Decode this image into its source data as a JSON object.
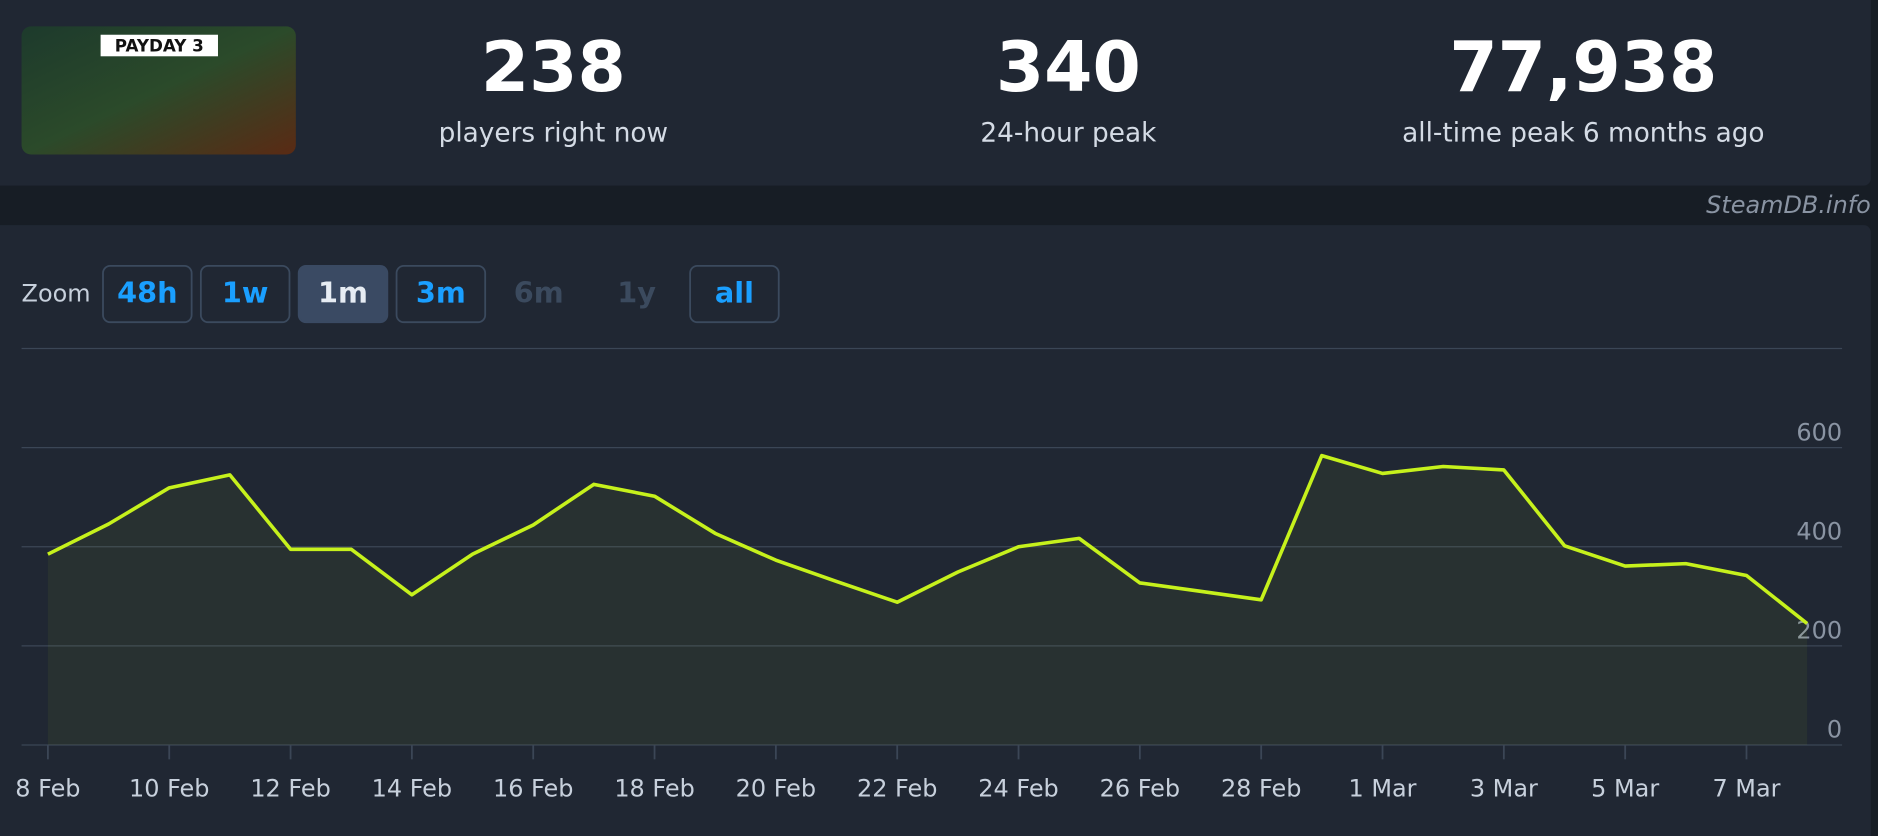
{
  "header": {
    "game_logo": "PAYDAY 3",
    "stats": [
      {
        "value": "238",
        "label": "players right now"
      },
      {
        "value": "340",
        "label": "24-hour peak"
      },
      {
        "value": "77,938",
        "label": "all-time peak 6 months ago"
      }
    ]
  },
  "watermark": "SteamDB.info",
  "zoom": {
    "label": "Zoom",
    "buttons": [
      {
        "text": "48h",
        "state": "enabled"
      },
      {
        "text": "1w",
        "state": "enabled"
      },
      {
        "text": "1m",
        "state": "active"
      },
      {
        "text": "3m",
        "state": "enabled"
      },
      {
        "text": "6m",
        "state": "disabled"
      },
      {
        "text": "1y",
        "state": "disabled"
      },
      {
        "text": "all",
        "state": "enabled"
      }
    ]
  },
  "chart_data": {
    "type": "line",
    "categories": [
      "8 Feb",
      null,
      "10 Feb",
      null,
      "12 Feb",
      null,
      "14 Feb",
      null,
      "16 Feb",
      null,
      "18 Feb",
      null,
      "20 Feb",
      null,
      "22 Feb",
      null,
      "24 Feb",
      null,
      "26 Feb",
      null,
      "28 Feb",
      null,
      "1 Mar",
      null,
      "3 Mar",
      null,
      "5 Mar",
      null,
      "7 Mar",
      null
    ],
    "series": [
      {
        "color": "#c6f11c",
        "values": [
          385,
          446,
          519,
          545,
          395,
          395,
          303,
          385,
          444,
          526,
          502,
          427,
          373,
          330,
          288,
          349,
          400,
          417,
          327,
          310,
          293,
          584,
          548,
          562,
          555,
          402,
          361,
          366,
          342,
          245
        ]
      }
    ],
    "ylim": [
      0,
      800
    ],
    "yticks": [
      0,
      200,
      400,
      600
    ],
    "grid": true
  }
}
